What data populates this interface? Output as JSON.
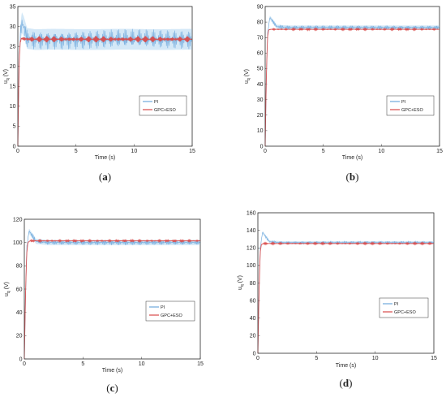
{
  "figure": {
    "colors": {
      "pi_line": "#6fa8dc",
      "pi_band": "#cfe6f6",
      "gpc_line": "#d94a4a",
      "axis": "#333333",
      "background": "#ffffff"
    }
  },
  "chart_data": [
    {
      "id": "a",
      "caption": "(a)",
      "type": "line",
      "xlabel": "Time (s)",
      "ylabel_main": "u",
      "ylabel_sub": "q",
      "ylabel_unit": " (V)",
      "xlim": [
        0,
        15
      ],
      "ylim": [
        0,
        35
      ],
      "xticks": [
        0,
        5,
        10,
        15
      ],
      "yticks": [
        0,
        5,
        10,
        15,
        20,
        25,
        30,
        35
      ],
      "legend_position": "right",
      "series": [
        {
          "name": "PI",
          "color": "#6fa8dc",
          "x": [
            0,
            0.1,
            0.2,
            0.35,
            0.5,
            0.8,
            1.5,
            3,
            6,
            9,
            12,
            15
          ],
          "y": [
            0,
            18,
            28,
            31,
            30,
            27,
            26.7,
            26.8,
            26.7,
            26.8,
            26.7,
            26.8
          ],
          "ripple": 2.6
        },
        {
          "name": "GPC+ESO",
          "color": "#d94a4a",
          "x": [
            0,
            0.1,
            0.2,
            0.3,
            0.5,
            1,
            3,
            6,
            9,
            12,
            15
          ],
          "y": [
            0,
            20,
            26,
            27,
            26.9,
            26.8,
            26.8,
            26.8,
            26.8,
            26.8,
            26.8
          ],
          "ripple": 0.8
        }
      ]
    },
    {
      "id": "b",
      "caption": "(b)",
      "type": "line",
      "xlabel": "Time (s)",
      "ylabel_main": "u",
      "ylabel_sub": "q",
      "ylabel_unit": " (V)",
      "xlim": [
        0,
        15
      ],
      "ylim": [
        0,
        90
      ],
      "xticks": [
        0,
        5,
        10,
        15
      ],
      "yticks": [
        0,
        10,
        20,
        30,
        40,
        50,
        60,
        70,
        80,
        90
      ],
      "legend_position": "right",
      "series": [
        {
          "name": "PI",
          "color": "#6fa8dc",
          "x": [
            0,
            0.1,
            0.2,
            0.4,
            0.6,
            1,
            2,
            5,
            10,
            15
          ],
          "y": [
            0,
            40,
            72,
            83,
            81,
            77,
            76.5,
            76.5,
            76.5,
            76.5
          ],
          "ripple": 1.3
        },
        {
          "name": "GPC+ESO",
          "color": "#d94a4a",
          "x": [
            0,
            0.1,
            0.2,
            0.3,
            0.5,
            1,
            5,
            10,
            15
          ],
          "y": [
            0,
            45,
            70,
            75,
            75.3,
            75.3,
            75.3,
            75.3,
            75.3
          ],
          "ripple": 0.6
        }
      ]
    },
    {
      "id": "c",
      "caption": "(c)",
      "type": "line",
      "xlabel": "Time (s)",
      "ylabel_main": "u",
      "ylabel_sub": "q",
      "ylabel_unit": " (V)",
      "xlim": [
        0,
        15
      ],
      "ylim": [
        0,
        120
      ],
      "xticks": [
        0,
        5,
        10,
        15
      ],
      "yticks": [
        0,
        20,
        40,
        60,
        80,
        100,
        120
      ],
      "legend_position": "right",
      "series": [
        {
          "name": "PI",
          "color": "#6fa8dc",
          "x": [
            0,
            0.1,
            0.2,
            0.4,
            0.6,
            1,
            2,
            5,
            10,
            15
          ],
          "y": [
            0,
            50,
            95,
            110,
            107,
            101,
            100,
            100,
            100,
            100
          ],
          "ripple": 2.2
        },
        {
          "name": "GPC+ESO",
          "color": "#d94a4a",
          "x": [
            0,
            0.1,
            0.2,
            0.3,
            0.5,
            1,
            5,
            10,
            15
          ],
          "y": [
            0,
            55,
            90,
            100,
            101.5,
            101.5,
            101.5,
            101.5,
            101.5
          ],
          "ripple": 0.9
        }
      ]
    },
    {
      "id": "d",
      "caption": "(d)",
      "type": "line",
      "xlabel": "Time (s)",
      "ylabel_main": "u",
      "ylabel_sub": "q",
      "ylabel_unit": " (V)",
      "xlim": [
        0,
        15
      ],
      "ylim": [
        0,
        160
      ],
      "xticks": [
        0,
        5,
        10,
        15
      ],
      "yticks": [
        0,
        20,
        40,
        60,
        80,
        100,
        120,
        140,
        160
      ],
      "legend_position": "right",
      "series": [
        {
          "name": "PI",
          "color": "#6fa8dc",
          "x": [
            0,
            0.1,
            0.2,
            0.4,
            0.6,
            1,
            2,
            5,
            10,
            15
          ],
          "y": [
            0,
            70,
            120,
            138,
            134,
            127,
            126,
            126,
            126,
            126
          ],
          "ripple": 1.6
        },
        {
          "name": "GPC+ESO",
          "color": "#d94a4a",
          "x": [
            0,
            0.1,
            0.2,
            0.3,
            0.5,
            1,
            5,
            10,
            15
          ],
          "y": [
            0,
            70,
            115,
            124,
            125,
            125,
            125,
            125,
            125
          ],
          "ripple": 0.9
        }
      ]
    }
  ]
}
